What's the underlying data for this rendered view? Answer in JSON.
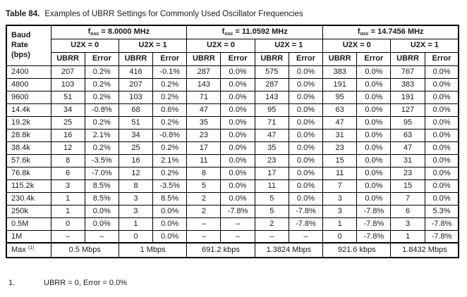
{
  "title": {
    "label": "Table 84.",
    "text": "Examples of UBRR Settings for Commonly Used Oscillator Frequencies"
  },
  "table": {
    "baud_header": "Baud\nRate\n(bps)",
    "groups": [
      {
        "f": "f",
        "sub": "osc",
        "value": "= 8.0000 MHz",
        "u2x": [
          "U2X = 0",
          "U2X = 1"
        ]
      },
      {
        "f": "f",
        "sub": "osc",
        "value": "= 11.0592 MHz",
        "u2x": [
          "U2X = 0",
          "U2X = 1"
        ]
      },
      {
        "f": "f",
        "sub": "osc",
        "value": "= 14.7456 MHz",
        "u2x": [
          "U2X = 0",
          "U2X = 1"
        ]
      }
    ],
    "col_headers": [
      "UBRR",
      "Error"
    ],
    "rows": [
      {
        "baud": "2400",
        "cells": [
          "207",
          "0.2%",
          "416",
          "-0.1%",
          "287",
          "0.0%",
          "575",
          "0.0%",
          "383",
          "0.0%",
          "767",
          "0.0%"
        ]
      },
      {
        "baud": "4800",
        "cells": [
          "103",
          "0.2%",
          "207",
          "0.2%",
          "143",
          "0.0%",
          "287",
          "0.0%",
          "191",
          "0.0%",
          "383",
          "0.0%"
        ]
      },
      {
        "baud": "9600",
        "cells": [
          "51",
          "0.2%",
          "103",
          "0.2%",
          "71",
          "0.0%",
          "143",
          "0.0%",
          "95",
          "0.0%",
          "191",
          "0.0%"
        ]
      },
      {
        "baud": "14.4k",
        "cells": [
          "34",
          "-0.8%",
          "68",
          "0.6%",
          "47",
          "0.0%",
          "95",
          "0.0%",
          "63",
          "0.0%",
          "127",
          "0.0%"
        ]
      },
      {
        "baud": "19.2k",
        "cells": [
          "25",
          "0.2%",
          "51",
          "0.2%",
          "35",
          "0.0%",
          "71",
          "0.0%",
          "47",
          "0.0%",
          "95",
          "0.0%"
        ]
      },
      {
        "baud": "28.8k",
        "cells": [
          "16",
          "2.1%",
          "34",
          "-0.8%",
          "23",
          "0.0%",
          "47",
          "0.0%",
          "31",
          "0.0%",
          "63",
          "0.0%"
        ]
      },
      {
        "baud": "38.4k",
        "cells": [
          "12",
          "0.2%",
          "25",
          "0.2%",
          "17",
          "0.0%",
          "35",
          "0.0%",
          "23",
          "0.0%",
          "47",
          "0.0%"
        ]
      },
      {
        "baud": "57.6k",
        "cells": [
          "8",
          "-3.5%",
          "16",
          "2.1%",
          "11",
          "0.0%",
          "23",
          "0.0%",
          "15",
          "0.0%",
          "31",
          "0.0%"
        ]
      },
      {
        "baud": "76.8k",
        "cells": [
          "6",
          "-7.0%",
          "12",
          "0.2%",
          "8",
          "0.0%",
          "17",
          "0.0%",
          "11",
          "0.0%",
          "23",
          "0.0%"
        ]
      },
      {
        "baud": "115.2k",
        "cells": [
          "3",
          "8.5%",
          "8",
          "-3.5%",
          "5",
          "0.0%",
          "11",
          "0.0%",
          "7",
          "0.0%",
          "15",
          "0.0%"
        ]
      },
      {
        "baud": "230.4k",
        "cells": [
          "1",
          "8.5%",
          "3",
          "8.5%",
          "2",
          "0.0%",
          "5",
          "0.0%",
          "3",
          "0.0%",
          "7",
          "0.0%"
        ]
      },
      {
        "baud": "250k",
        "cells": [
          "1",
          "0.0%",
          "3",
          "0.0%",
          "2",
          "-7.8%",
          "5",
          "-7.8%",
          "3",
          "-7.8%",
          "6",
          "5.3%"
        ]
      },
      {
        "baud": "0.5M",
        "cells": [
          "0",
          "0.0%",
          "1",
          "0.0%",
          "–",
          "–",
          "2",
          "-7.8%",
          "1",
          "-7.8%",
          "3",
          "-7.8%"
        ]
      },
      {
        "baud": "1M",
        "cells": [
          "–",
          "–",
          "0",
          "0.0%",
          "–",
          "–",
          "–",
          "–",
          "0",
          "-7.8%",
          "1",
          "-7.8%"
        ]
      }
    ],
    "max_row": {
      "label": "Max ",
      "sup": "(1)",
      "values": [
        "0.5 Mbps",
        "1 Mbps",
        "691.2 kbps",
        "1.3824 Mbps",
        "921.6 kbps",
        "1.8432 Mbps"
      ]
    }
  },
  "footnote": {
    "number": "1.",
    "text": "UBRR = 0, Error = 0.0%"
  }
}
